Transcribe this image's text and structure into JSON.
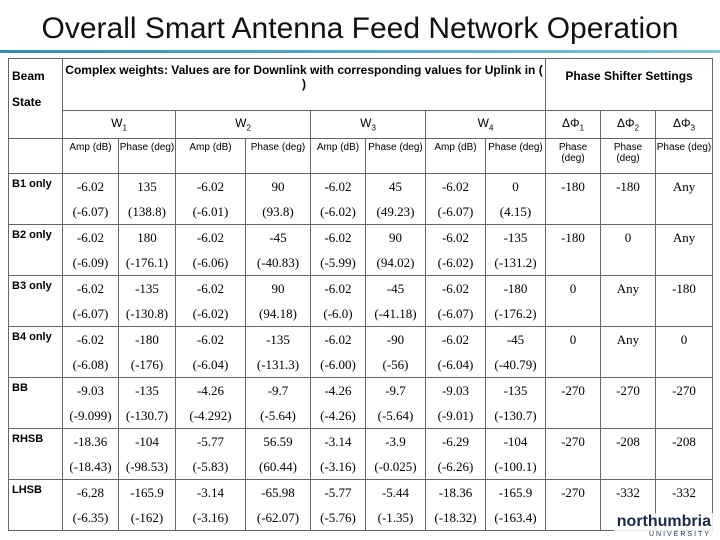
{
  "title": "Overall Smart Antenna Feed Network Operation",
  "table": {
    "corner": [
      "Beam",
      "State"
    ],
    "weights_header": "Complex weights: Values are for Downlink with corresponding values for Uplink in ( )",
    "shifter_header": "Phase Shifter Settings",
    "weights": [
      {
        "base": "W",
        "sub": "1"
      },
      {
        "base": "W",
        "sub": "2"
      },
      {
        "base": "W",
        "sub": "3"
      },
      {
        "base": "W",
        "sub": "4"
      }
    ],
    "shifters": [
      {
        "base": "ΔΦ",
        "sub": "1"
      },
      {
        "base": "ΔΦ",
        "sub": "2"
      },
      {
        "base": "ΔΦ",
        "sub": "3"
      }
    ],
    "weight_subheaders": [
      "Amp (dB)",
      "Phase (deg)",
      "Amp (dB)",
      "Phase (deg)",
      "Amp (dB)",
      "Phase (deg)",
      "Amp (dB)",
      "Phase (deg)"
    ],
    "shifter_subheaders": [
      "Phase (deg)",
      "Phase (deg)",
      "Phase (deg)"
    ],
    "rows": [
      {
        "label": "B1 only",
        "downlink": [
          "-6.02",
          "135",
          "-6.02",
          "90",
          "-6.02",
          "45",
          "-6.02",
          "0"
        ],
        "uplink": [
          "(-6.07)",
          "(138.8)",
          "(-6.01)",
          "(93.8)",
          "(-6.02)",
          "(49.23)",
          "(-6.07)",
          "(4.15)"
        ],
        "shifters": [
          "-180",
          "-180",
          "Any"
        ]
      },
      {
        "label": "B2 only",
        "downlink": [
          "-6.02",
          "180",
          "-6.02",
          "-45",
          "-6.02",
          "90",
          "-6.02",
          "-135"
        ],
        "uplink": [
          "(-6.09)",
          "(-176.1)",
          "(-6.06)",
          "(-40.83)",
          "(-5.99)",
          "(94.02)",
          "(-6.02)",
          "(-131.2)"
        ],
        "shifters": [
          "-180",
          "0",
          "Any"
        ]
      },
      {
        "label": "B3 only",
        "downlink": [
          "-6.02",
          "-135",
          "-6.02",
          "90",
          "-6.02",
          "-45",
          "-6.02",
          "-180"
        ],
        "uplink": [
          "(-6.07)",
          "(-130.8)",
          "(-6.02)",
          "(94.18)",
          "(-6.0)",
          "(-41.18)",
          "(-6.07)",
          "(-176.2)"
        ],
        "shifters": [
          "0",
          "Any",
          "-180"
        ]
      },
      {
        "label": "B4 only",
        "downlink": [
          "-6.02",
          "-180",
          "-6.02",
          "-135",
          "-6.02",
          "-90",
          "-6.02",
          "-45"
        ],
        "uplink": [
          "(-6.08)",
          "(-176)",
          "(-6.04)",
          "(-131.3)",
          "(-6.00)",
          "(-56)",
          "(-6.04)",
          "(-40.79)"
        ],
        "shifters": [
          "0",
          "Any",
          "0"
        ]
      },
      {
        "label": "BB",
        "downlink": [
          "-9.03",
          "-135",
          "-4.26",
          "-9.7",
          "-4.26",
          "-9.7",
          "-9.03",
          "-135"
        ],
        "uplink": [
          "(-9.099)",
          "(-130.7)",
          "(-4.292)",
          "(-5.64)",
          "(-4.26)",
          "(-5.64)",
          "(-9.01)",
          "(-130.7)"
        ],
        "shifters": [
          "-270",
          "-270",
          "-270"
        ]
      },
      {
        "label": "RHSB",
        "downlink": [
          "-18.36",
          "-104",
          "-5.77",
          "56.59",
          "-3.14",
          "-3.9",
          "-6.29",
          "-104"
        ],
        "uplink": [
          "(-18.43)",
          "(-98.53)",
          "(-5.83)",
          "(60.44)",
          "(-3.16)",
          "(-0.025)",
          "(-6.26)",
          "(-100.1)"
        ],
        "shifters": [
          "-270",
          "-208",
          "-208"
        ]
      },
      {
        "label": "LHSB",
        "downlink": [
          "-6.28",
          "-165.9",
          "-3.14",
          "-65.98",
          "-5.77",
          "-5.44",
          "-18.36",
          "-165.9"
        ],
        "uplink": [
          "(-6.35)",
          "(-162)",
          "(-3.16)",
          "(-62.07)",
          "(-5.76)",
          "(-1.35)",
          "(-18.32)",
          "(-163.4)"
        ],
        "shifters": [
          "-270",
          "-332",
          "-332"
        ]
      }
    ]
  },
  "logo": {
    "name": "northumbria",
    "sub": "UNIVERSITY"
  }
}
